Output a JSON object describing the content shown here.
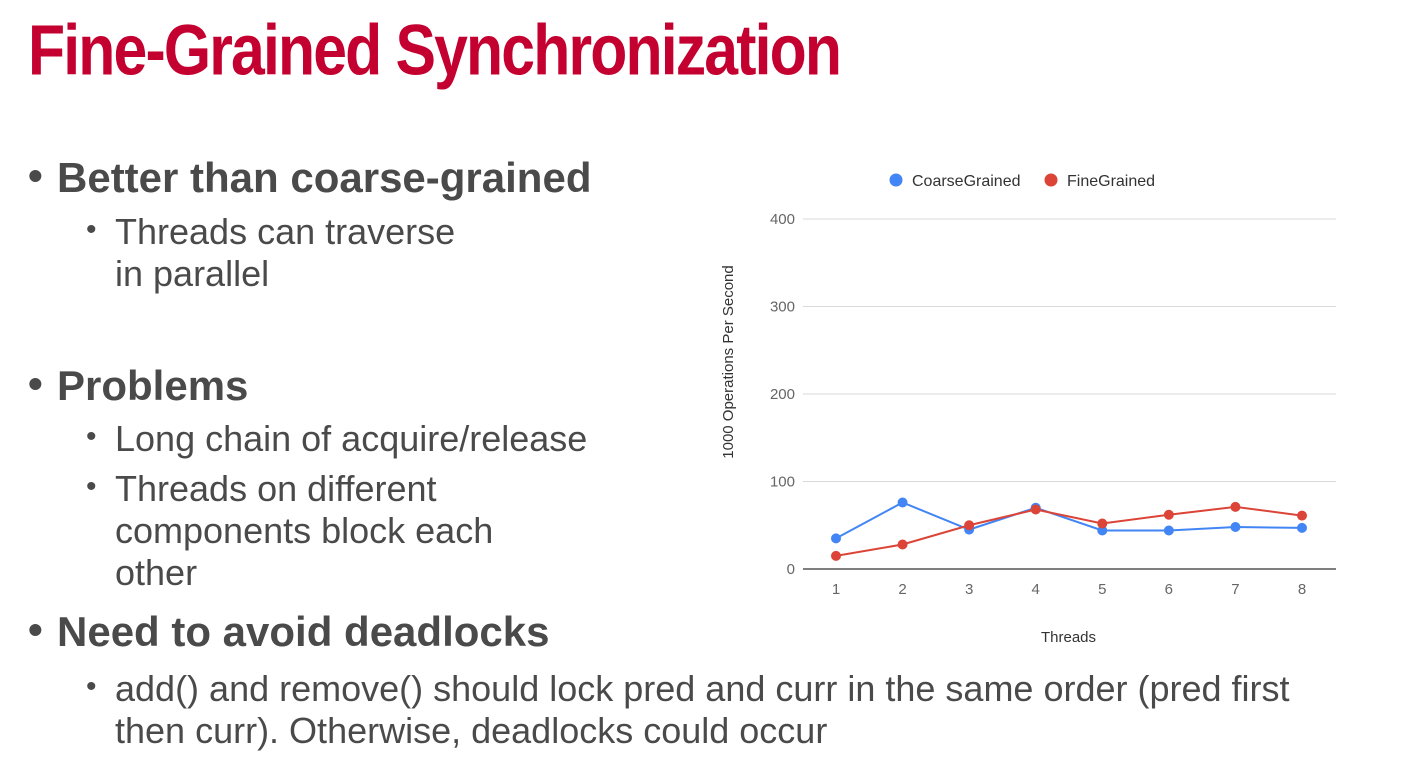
{
  "slide": {
    "title": "Fine-Grained Synchronization",
    "bullets": [
      {
        "text": "Better than coarse-grained",
        "sub": [
          "Threads can traverse\nin parallel"
        ]
      },
      {
        "text": "Problems",
        "sub": [
          "Long chain of acquire/release",
          "Threads on different\ncomponents block each\nother"
        ]
      },
      {
        "text": "Need to avoid deadlocks",
        "sub": [
          "add() and remove() should lock pred and curr in the same order (pred first\nthen curr). Otherwise, deadlocks could occur"
        ]
      }
    ]
  },
  "chart_data": {
    "type": "line",
    "x": [
      1,
      2,
      3,
      4,
      5,
      6,
      7,
      8
    ],
    "xlabel": "Threads",
    "ylabel": "1000 Operations Per Second",
    "ylim": [
      0,
      400
    ],
    "yticks": [
      0,
      100,
      200,
      300,
      400
    ],
    "grid": true,
    "legend": "top-center",
    "series": [
      {
        "name": "CoarseGrained",
        "color": "#4285f4",
        "values": [
          35,
          76,
          45,
          70,
          44,
          44,
          48,
          47
        ]
      },
      {
        "name": "FineGrained",
        "color": "#db4437",
        "values": [
          15,
          28,
          50,
          68,
          52,
          62,
          71,
          61
        ]
      }
    ]
  }
}
